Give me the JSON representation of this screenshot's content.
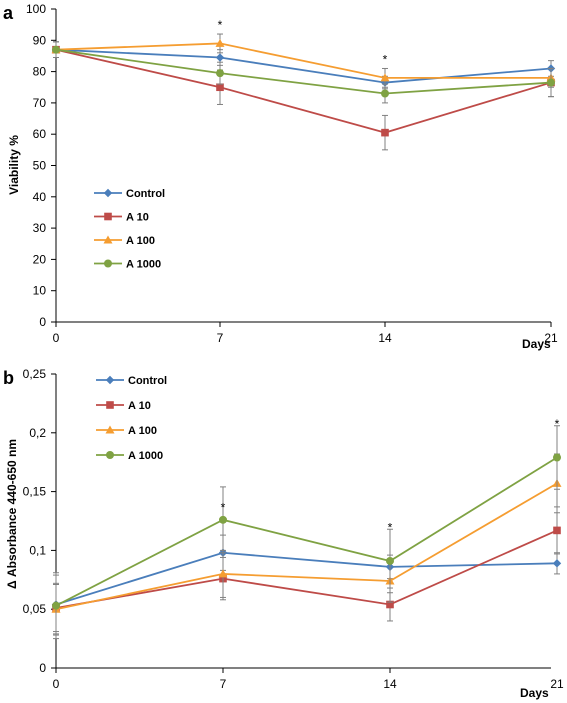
{
  "chart_data": [
    {
      "panel": "a",
      "type": "line",
      "ylabel": "Viability %",
      "xlabel": "Days",
      "x": [
        0,
        7,
        14,
        21
      ],
      "x_ticks": [
        "0",
        "7",
        "14",
        "21"
      ],
      "y_ticks": [
        "0",
        "10",
        "20",
        "30",
        "40",
        "50",
        "60",
        "70",
        "80",
        "90",
        "100"
      ],
      "ylim": [
        0,
        100
      ],
      "legend_position": "left-middle",
      "series": [
        {
          "name": "Control",
          "values": [
            87,
            84.5,
            76.5,
            81
          ],
          "errors": [
            2.5,
            2.5,
            2,
            2.5
          ]
        },
        {
          "name": "A 10",
          "values": [
            87,
            75,
            60.5,
            76.5
          ],
          "errors": [
            2.5,
            5.5,
            5.5,
            4.5
          ]
        },
        {
          "name": "A 100",
          "values": [
            87,
            89,
            78,
            78
          ],
          "errors": [
            2.5,
            3,
            3,
            3
          ]
        },
        {
          "name": "A 1000",
          "values": [
            87,
            79.5,
            73,
            76.5
          ],
          "errors": [
            2.5,
            3.5,
            3,
            4.5
          ]
        }
      ],
      "annotations": [
        {
          "text": "*",
          "x": 7,
          "y": 95.5
        },
        {
          "text": "*",
          "x": 14,
          "y": 84.5
        }
      ]
    },
    {
      "panel": "b",
      "type": "line",
      "ylabel": "Δ Absorbance 440-650 nm",
      "xlabel": "Days",
      "x": [
        0,
        7,
        14,
        21
      ],
      "x_ticks": [
        "0",
        "7",
        "14",
        "21"
      ],
      "y_ticks": [
        "0",
        "0,05",
        "0,1",
        "0,15",
        "0,2",
        "0,25"
      ],
      "ylim": [
        0,
        0.25
      ],
      "legend_position": "top-left",
      "series": [
        {
          "name": "Control",
          "values": [
            0.054,
            0.098,
            0.086,
            0.089
          ],
          "errors": [
            0.025,
            0.015,
            0.01,
            0.009
          ]
        },
        {
          "name": "A 10",
          "values": [
            0.051,
            0.076,
            0.054,
            0.117
          ],
          "errors": [
            0.02,
            0.018,
            0.014,
            0.02
          ]
        },
        {
          "name": "A 100",
          "values": [
            0.05,
            0.08,
            0.074,
            0.157
          ],
          "errors": [
            0.022,
            0.02,
            0.018,
            0.025
          ]
        },
        {
          "name": "A 1000",
          "values": [
            0.053,
            0.126,
            0.091,
            0.179
          ],
          "errors": [
            0.028,
            0.028,
            0.027,
            0.027
          ]
        }
      ],
      "annotations": [
        {
          "text": "*",
          "x": 7,
          "y": 0.138
        },
        {
          "text": "*",
          "x": 14,
          "y": 0.121
        },
        {
          "text": "*",
          "x": 21,
          "y": 0.209
        }
      ]
    }
  ],
  "colors": {
    "Control": "#4a7ebb",
    "A 10": "#be4b48",
    "A 100": "#f59d31",
    "A 1000": "#7fa243",
    "axis": "#000000",
    "error_bar": "#808080"
  },
  "markers": {
    "Control": "diamond-icon",
    "A 10": "square-icon",
    "A 100": "triangle-icon",
    "A 1000": "circle-icon"
  }
}
